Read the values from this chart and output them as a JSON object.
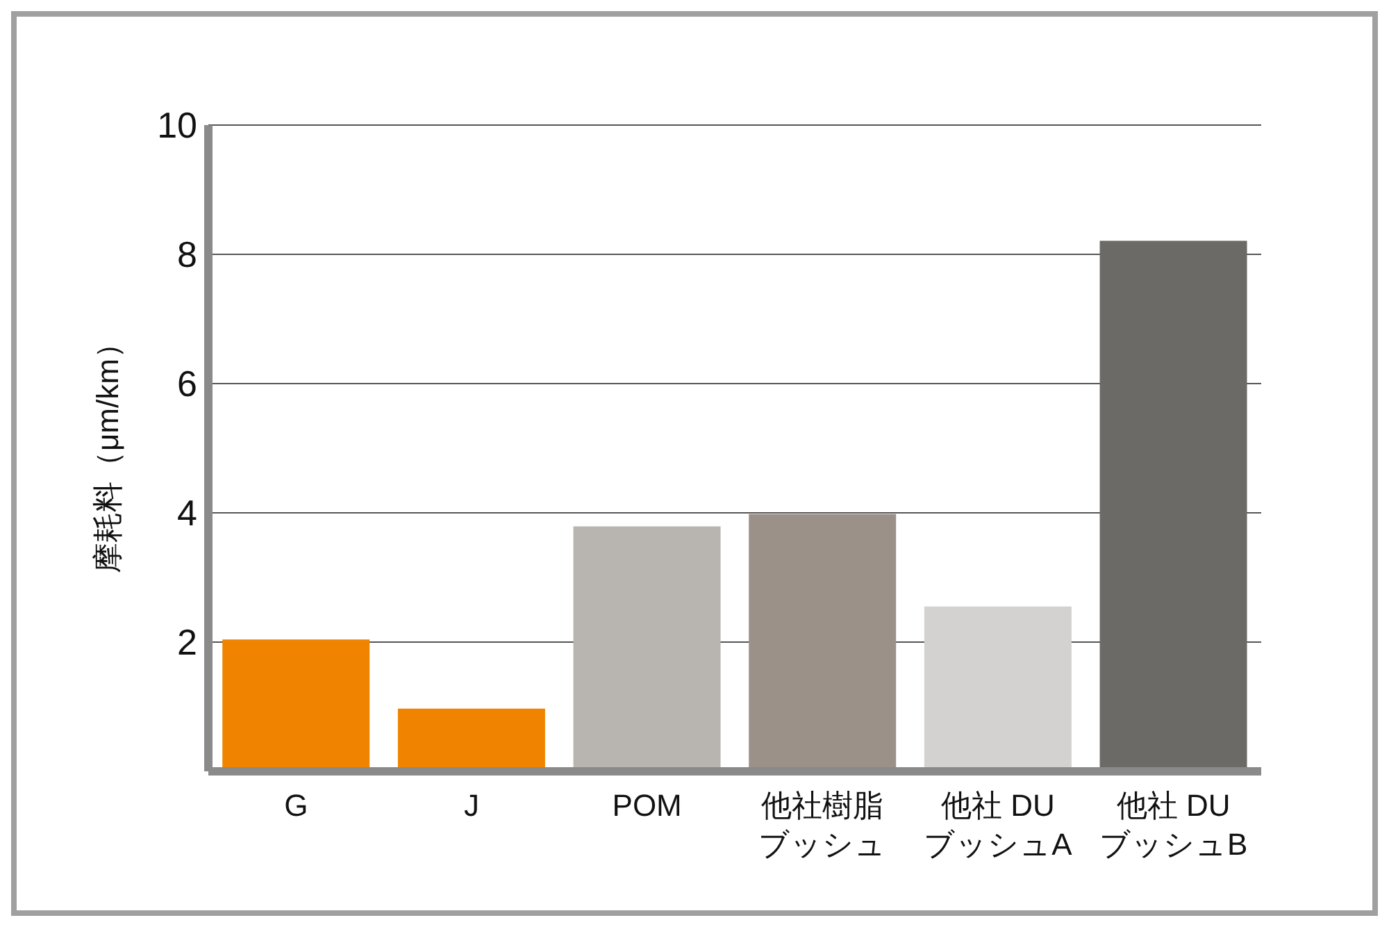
{
  "chart_data": {
    "type": "bar",
    "ylabel": "摩耗料（μm/km）",
    "categories": [
      "G",
      "J",
      "POM",
      "他社樹脂ブッシュ",
      "他社 DU\nブッシュA",
      "他社 DU\nブッシュB"
    ],
    "values": [
      2.04,
      0.97,
      3.79,
      3.98,
      2.55,
      8.21
    ],
    "colors": [
      "#f08300",
      "#f08300",
      "#b8b5b0",
      "#9b9189",
      "#d3d2d0",
      "#6b6a67"
    ],
    "ylim": [
      0,
      10
    ],
    "yticks": [
      2,
      4,
      6,
      8,
      10
    ],
    "grid": "y",
    "legend": false
  }
}
